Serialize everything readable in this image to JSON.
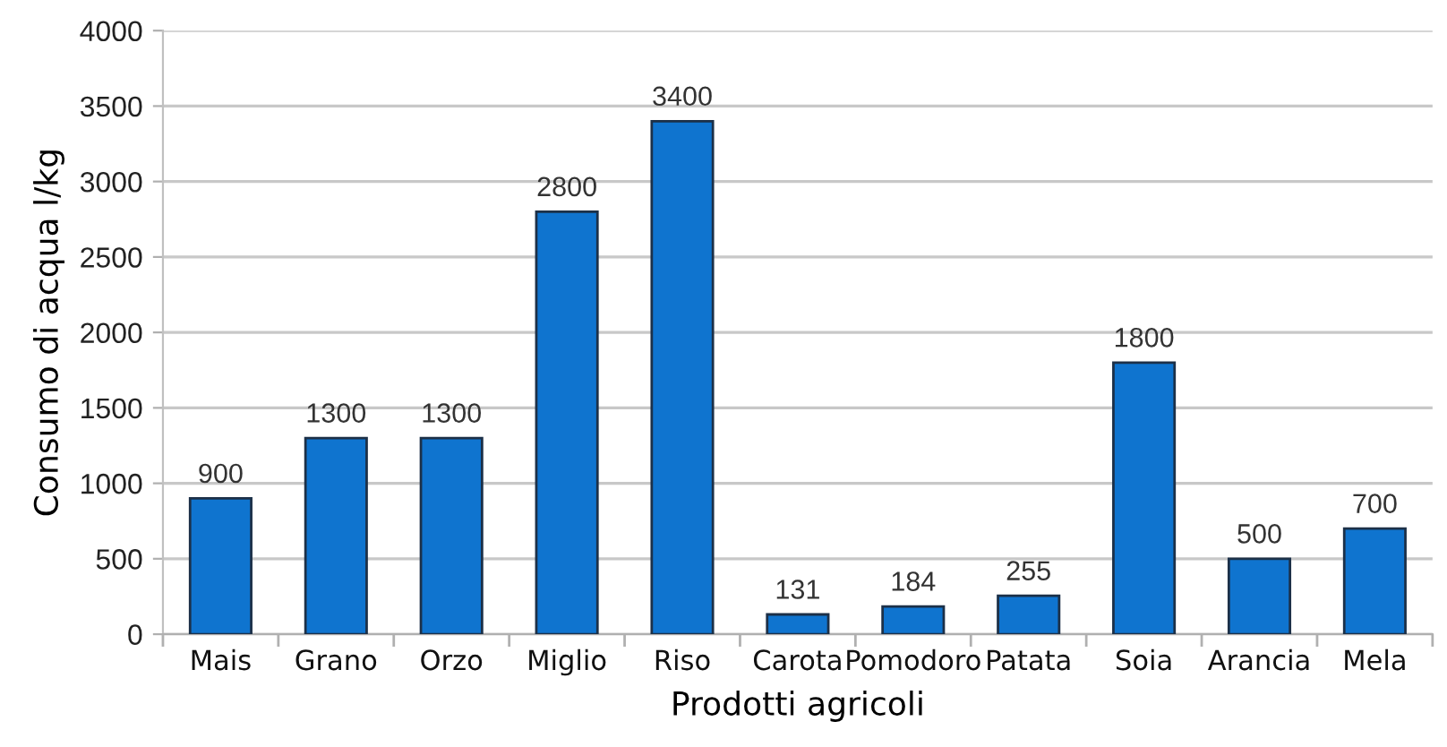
{
  "chart_data": {
    "type": "bar",
    "xlabel": "Prodotti agricoli",
    "ylabel": "Consumo di acqua l/kg",
    "categories": [
      "Mais",
      "Grano",
      "Orzo",
      "Miglio",
      "Riso",
      "Carota",
      "Pomodoro",
      "Patata",
      "Soia",
      "Arancia",
      "Mela"
    ],
    "values": [
      900,
      1300,
      1300,
      2800,
      3400,
      131,
      184,
      255,
      1800,
      500,
      700
    ],
    "color": "#0f74cf",
    "ylim": [
      0,
      4000
    ],
    "yticks": [
      0,
      500,
      1000,
      1500,
      2000,
      2500,
      3000,
      3500,
      4000
    ],
    "grid": "y",
    "data_labels": true
  }
}
